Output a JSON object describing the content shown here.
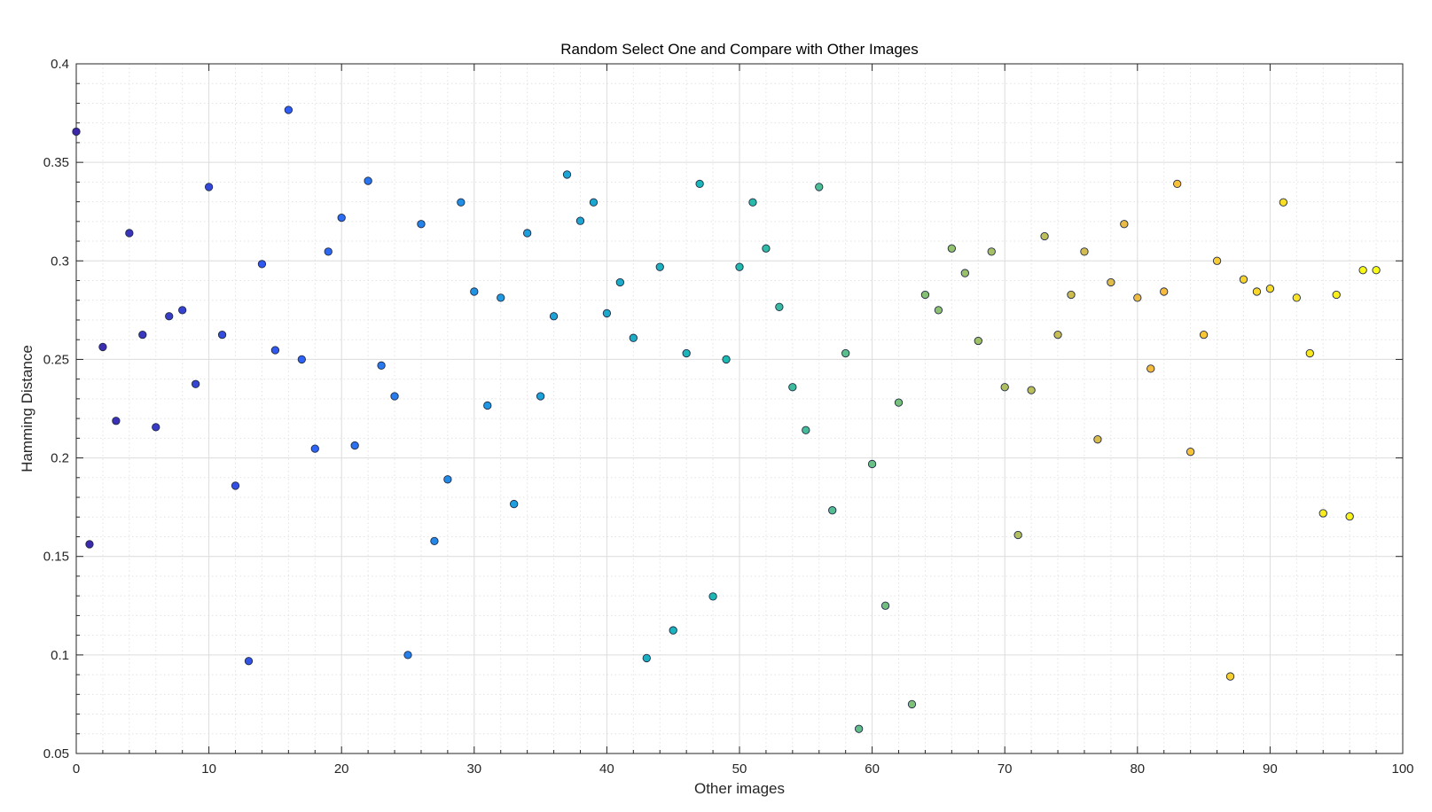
{
  "chart_data": {
    "type": "scatter",
    "title": "Random Select One and Compare with Other Images",
    "xlabel": "Other images",
    "ylabel": "Hamming Distance",
    "xlim": [
      0,
      100
    ],
    "ylim": [
      0.05,
      0.4
    ],
    "xticks": [
      0,
      10,
      20,
      30,
      40,
      50,
      60,
      70,
      80,
      90,
      100
    ],
    "yticks": [
      0.05,
      0.1,
      0.15,
      0.2,
      0.25,
      0.3,
      0.35,
      0.4
    ],
    "ytick_labels": [
      "0.05",
      "0.1",
      "0.15",
      "0.2",
      "0.25",
      "0.3",
      "0.35",
      "0.4"
    ],
    "grid": true,
    "minor_grid": true,
    "legend": "none",
    "colormap": [
      "#3e26a8",
      "#2f5ef8",
      "#1d9de0",
      "#1bbab1",
      "#8fc16f",
      "#f8ba3d",
      "#f9fb15"
    ],
    "series": [
      {
        "x": [
          0,
          1,
          2,
          3,
          4,
          5,
          6,
          7,
          8,
          9,
          10,
          11,
          12,
          13,
          14,
          15,
          16,
          17,
          18,
          19,
          20,
          21,
          22,
          23,
          24,
          25,
          26,
          27,
          28,
          29,
          30,
          31,
          32,
          33,
          34,
          35,
          36,
          37,
          38,
          39,
          40,
          41,
          42,
          43,
          44,
          45,
          46,
          47,
          48,
          49,
          50,
          51,
          52,
          53,
          54,
          55,
          56,
          57,
          58,
          59,
          60,
          61,
          62,
          63,
          64,
          65,
          66,
          67,
          68,
          69,
          70,
          71,
          72,
          73,
          74,
          75,
          76,
          77,
          78,
          79,
          80,
          81,
          82,
          83,
          84,
          85,
          86,
          87,
          88,
          89,
          90,
          91,
          92,
          93,
          94,
          95,
          96,
          97,
          98
        ],
        "y": [
          0.3656,
          0.1562,
          0.2563,
          0.2188,
          0.3141,
          0.2625,
          0.2156,
          0.2719,
          0.275,
          0.2375,
          0.3375,
          0.2625,
          0.1859,
          0.0969,
          0.2984,
          0.2547,
          0.3766,
          0.25,
          0.2047,
          0.3047,
          0.3219,
          0.2063,
          0.3406,
          0.2469,
          0.2313,
          0.1,
          0.3187,
          0.1578,
          0.1891,
          0.3297,
          0.2844,
          0.2266,
          0.2813,
          0.1766,
          0.3141,
          0.2313,
          0.2719,
          0.3438,
          0.3203,
          0.3297,
          0.2734,
          0.2891,
          0.2609,
          0.0984,
          0.2969,
          0.1125,
          0.2531,
          0.3391,
          0.1297,
          0.25,
          0.2969,
          0.3297,
          0.3063,
          0.2766,
          0.2359,
          0.2141,
          0.3375,
          0.1734,
          0.2531,
          0.0625,
          0.1969,
          0.125,
          0.2281,
          0.075,
          0.2828,
          0.275,
          0.3063,
          0.2938,
          0.2594,
          0.3047,
          0.2359,
          0.1609,
          0.2344,
          0.3125,
          0.2625,
          0.2828,
          0.3047,
          0.2094,
          0.2891,
          0.3187,
          0.2813,
          0.2453,
          0.2844,
          0.3391,
          0.2031,
          0.2625,
          0.3,
          0.0891,
          0.2906,
          0.2844,
          0.2859,
          0.3297,
          0.2813,
          0.2531,
          0.1719,
          0.2828,
          0.1703,
          0.2953,
          0.2953
        ]
      }
    ]
  }
}
